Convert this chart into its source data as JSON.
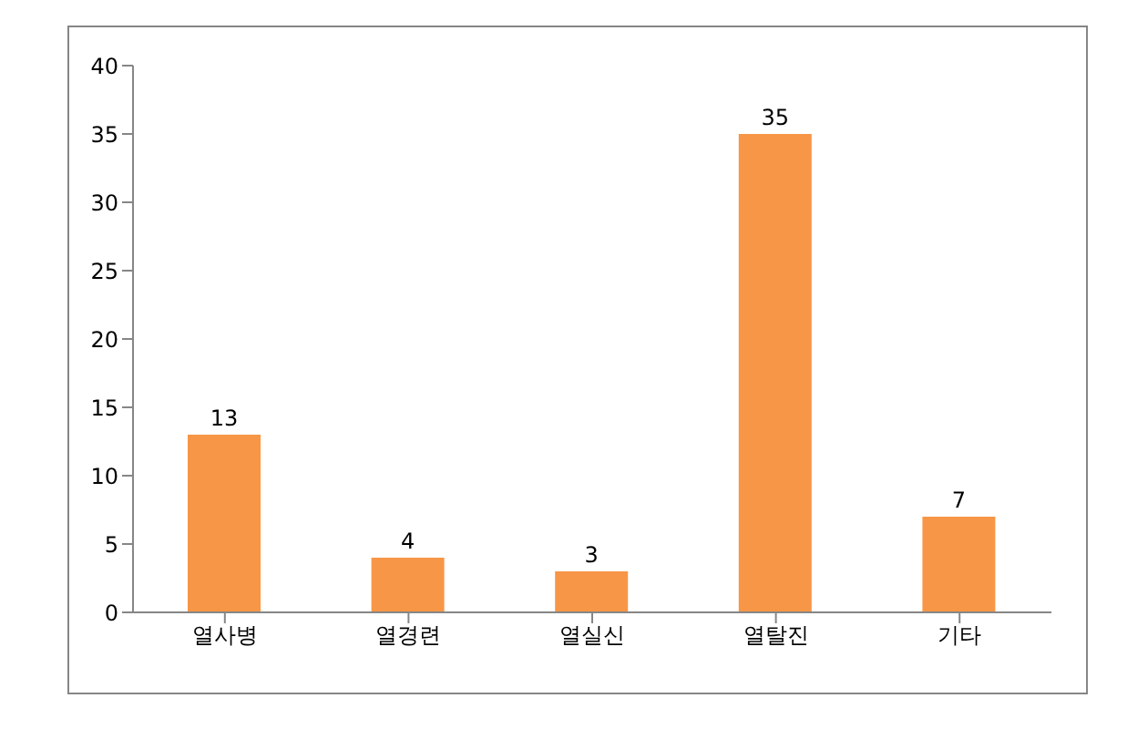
{
  "chart_data": {
    "type": "bar",
    "categories": [
      "열사병",
      "열경련",
      "열실신",
      "열탈진",
      "기타"
    ],
    "values": [
      13,
      4,
      3,
      35,
      7
    ],
    "color": "#f79646",
    "ylim": [
      0,
      40
    ],
    "yticks": [
      0,
      5,
      10,
      15,
      20,
      25,
      30,
      35,
      40
    ],
    "grid": false,
    "data_labels": true,
    "legend": false
  }
}
